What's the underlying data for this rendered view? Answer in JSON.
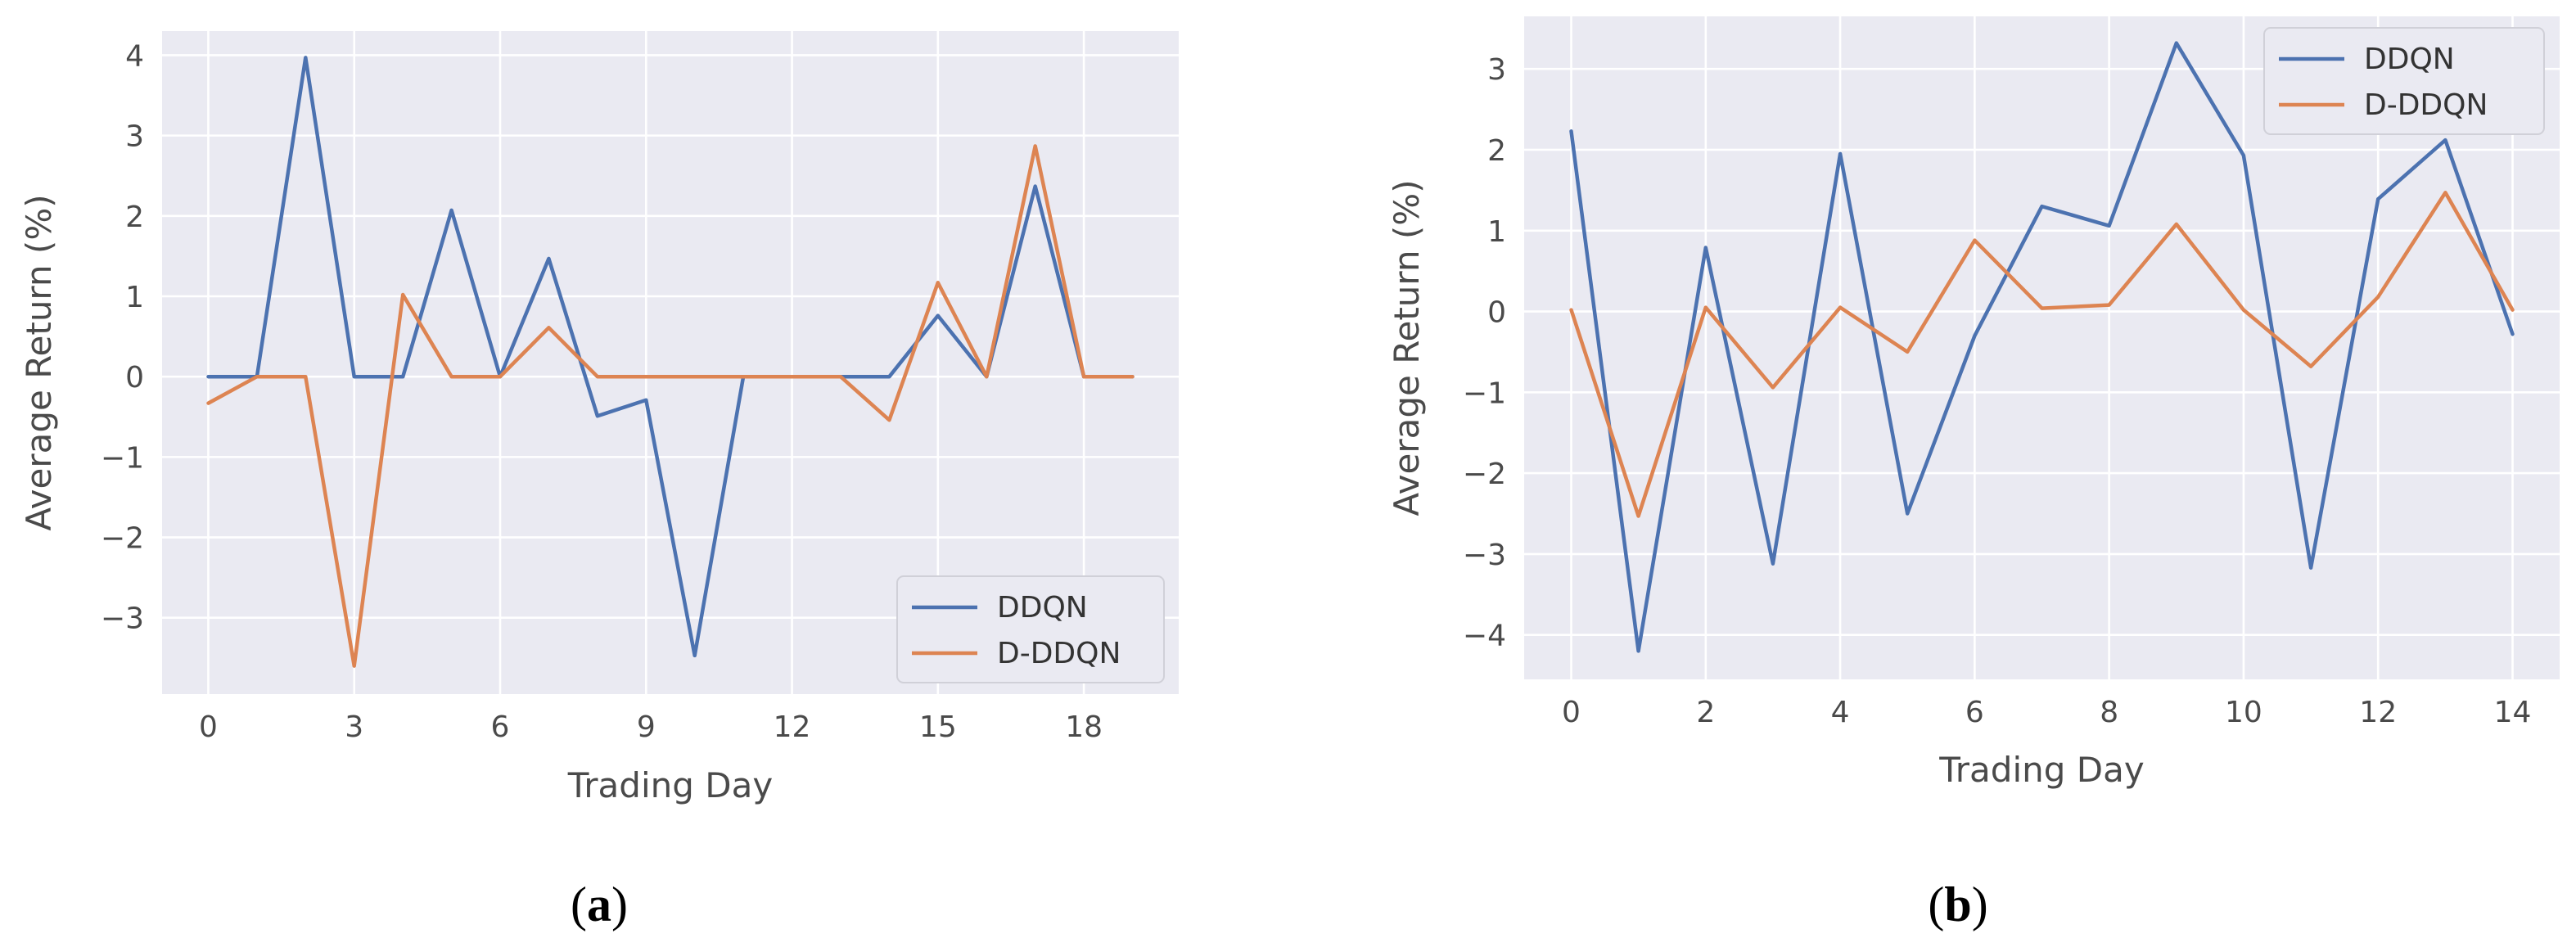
{
  "colors": {
    "panel_bg": "#eaeaf2",
    "grid": "#ffffff",
    "series_1": "#4c72b0",
    "series_2": "#dd8452"
  },
  "chart_data": [
    {
      "type": "line",
      "caption": {
        "open": "(",
        "letter": "a",
        "close": ")"
      },
      "xlabel": "Trading Day",
      "ylabel": "Average Return (%)",
      "xlim": [
        -0.95,
        19.95
      ],
      "ylim": [
        -3.95,
        4.3
      ],
      "xticks": [
        0,
        3,
        6,
        9,
        12,
        15,
        18
      ],
      "yticks": [
        -3,
        -2,
        -1,
        0,
        1,
        2,
        3,
        4
      ],
      "legend_position": "lower-right",
      "grid": true,
      "x": [
        0,
        1,
        2,
        3,
        4,
        5,
        6,
        7,
        8,
        9,
        10,
        11,
        12,
        13,
        14,
        15,
        16,
        17,
        18,
        19
      ],
      "series": [
        {
          "name": "DDQN",
          "values": [
            0,
            0,
            3.97,
            0,
            0,
            2.07,
            0,
            1.47,
            -0.49,
            -0.29,
            -3.47,
            0,
            0,
            0,
            0,
            0.76,
            0,
            2.37,
            0,
            0
          ]
        },
        {
          "name": "D-DDQN",
          "values": [
            -0.33,
            0,
            0,
            -3.6,
            1.02,
            0,
            0,
            0.61,
            0,
            0,
            0,
            0,
            0,
            0,
            -0.54,
            1.17,
            0,
            2.87,
            0,
            0
          ]
        }
      ]
    },
    {
      "type": "line",
      "caption": {
        "open": "(",
        "letter": "b",
        "close": ")"
      },
      "xlabel": "Trading Day",
      "ylabel": "Average Return (%)",
      "xlim": [
        -0.7,
        14.7
      ],
      "ylim": [
        -4.55,
        3.65
      ],
      "xticks": [
        0,
        2,
        4,
        6,
        8,
        10,
        12,
        14
      ],
      "yticks": [
        -4,
        -3,
        -2,
        -1,
        0,
        1,
        2,
        3
      ],
      "legend_position": "upper-right",
      "grid": true,
      "x": [
        0,
        1,
        2,
        3,
        4,
        5,
        6,
        7,
        8,
        9,
        10,
        11,
        12,
        13,
        14
      ],
      "series": [
        {
          "name": "DDQN",
          "values": [
            2.23,
            -4.2,
            0.79,
            -3.12,
            1.95,
            -2.5,
            -0.3,
            1.3,
            1.06,
            3.32,
            1.93,
            -3.17,
            1.39,
            2.12,
            -0.28
          ]
        },
        {
          "name": "D-DDQN",
          "values": [
            0.02,
            -2.53,
            0.05,
            -0.94,
            0.05,
            -0.5,
            0.88,
            0.04,
            0.08,
            1.08,
            0.02,
            -0.68,
            0.18,
            1.47,
            0.02
          ]
        }
      ]
    }
  ]
}
